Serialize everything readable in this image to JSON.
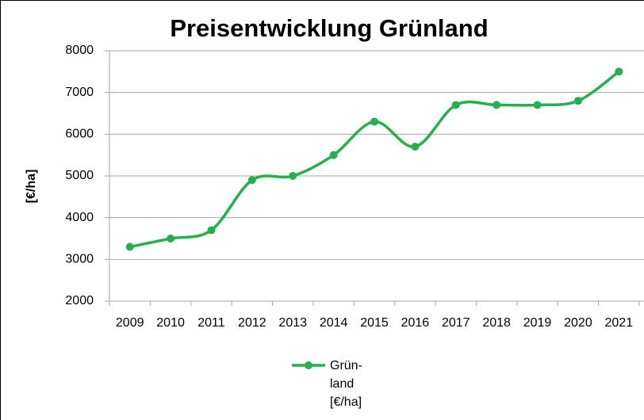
{
  "chart_data": {
    "type": "line",
    "title": "Preisentwicklung Grünland",
    "y_label": "[€/ha]",
    "categories": [
      "2009",
      "2010",
      "2011",
      "2012",
      "2013",
      "2014",
      "2015",
      "2016",
      "2017",
      "2018",
      "2019",
      "2020",
      "2021"
    ],
    "series": [
      {
        "name": "Grün-land [€/ha]",
        "color": "#22b14c",
        "values": [
          3300,
          3500,
          3700,
          4900,
          5000,
          5500,
          6300,
          5700,
          6700,
          6700,
          6700,
          6800,
          7500
        ]
      }
    ],
    "ylim": [
      2000,
      8000
    ],
    "yticks": [
      2000,
      3000,
      4000,
      5000,
      6000,
      7000,
      8000
    ],
    "grid": true,
    "smooth": true,
    "legend": "bottom"
  }
}
